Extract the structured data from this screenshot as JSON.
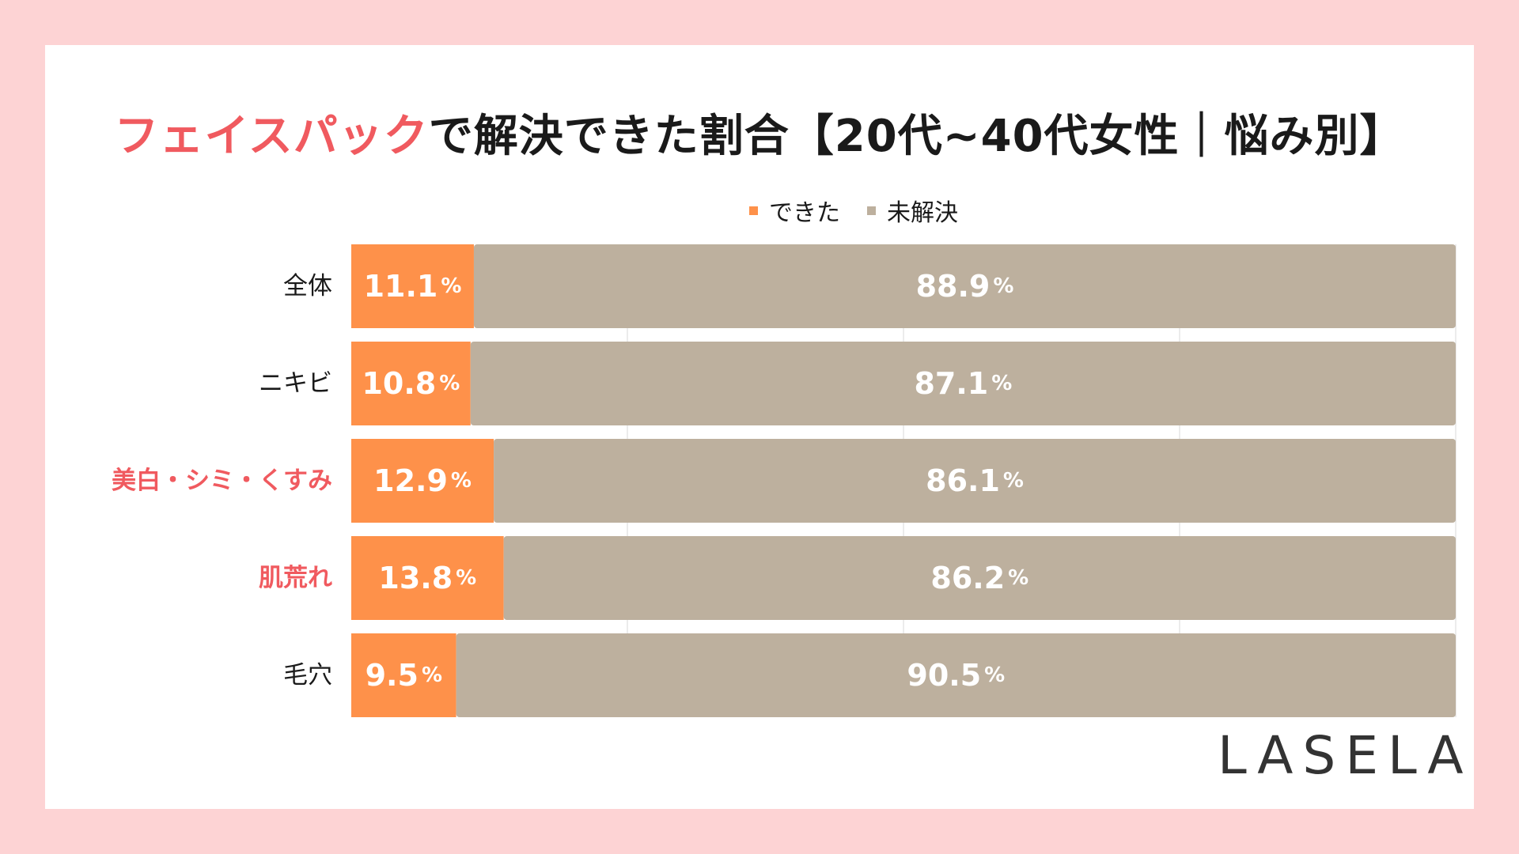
{
  "title": {
    "accent": "フェイスパック",
    "rest": "で解決できた割合【20代~40代女性｜悩み別】"
  },
  "legend": [
    {
      "label": "できた",
      "color": "#fe914a"
    },
    {
      "label": "未解決",
      "color": "#bdb09e"
    }
  ],
  "brand": "LASELA",
  "chart_data": {
    "type": "bar",
    "orientation": "horizontal",
    "stacked": true,
    "xlim": [
      0,
      100
    ],
    "grid": true,
    "legend_position": "top",
    "categories": [
      "全体",
      "ニキビ",
      "美白・シミ・くすみ",
      "肌荒れ",
      "毛穴"
    ],
    "highlighted_categories": [
      "美白・シミ・くすみ",
      "肌荒れ"
    ],
    "series": [
      {
        "name": "できた",
        "color": "#fe914a",
        "values": [
          11.1,
          10.8,
          12.9,
          13.8,
          9.5
        ],
        "labels": [
          "11.1",
          "10.8",
          "12.9",
          "13.8",
          "9.5"
        ]
      },
      {
        "name": "未解決",
        "color": "#bdb09e",
        "values": [
          88.9,
          87.1,
          86.1,
          86.2,
          90.5
        ],
        "labels": [
          "88.9",
          "87.1",
          "86.1",
          "86.2",
          "90.5"
        ]
      }
    ],
    "unit": "%",
    "colors": {
      "label_default": "#1a1a1a",
      "label_highlight": "#f05a5f",
      "grid": "#d9d9d9",
      "value_text": "#ffffff"
    }
  }
}
